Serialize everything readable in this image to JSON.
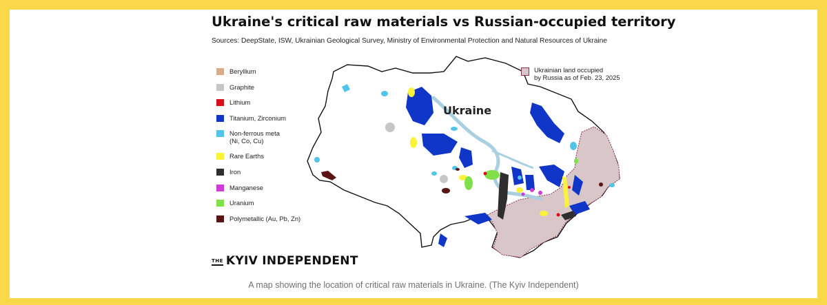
{
  "figure": {
    "title": "Ukraine's critical raw materials vs Russian-occupied territory",
    "sources": "Sources: DeepState, ISW, Ukrainian Geological Survey, Ministry of Environmental Protection and Natural Resources of Ukraine",
    "map_label": "Ukraine",
    "brand_the": "THE",
    "brand_name": "KYIV INDEPENDENT",
    "caption": "A map showing the location of critical raw materials in Ukraine. (The Kyiv Independent)"
  },
  "legend": {
    "items": [
      {
        "label": "Beryllium",
        "color": "#d9ab86"
      },
      {
        "label": "Graphite",
        "color": "#c6c6c6"
      },
      {
        "label": "Lithium",
        "color": "#d80f1b"
      },
      {
        "label": "Titanium, Zirconium",
        "color": "#1036c8"
      },
      {
        "label": "Non-ferrous meta\n(Ni, Co, Cu)",
        "color": "#52c4e8"
      },
      {
        "label": "Rare Earths",
        "color": "#fbf23a"
      },
      {
        "label": "Iron",
        "color": "#2e2e2e"
      },
      {
        "label": "Manganese",
        "color": "#cf3ad9"
      },
      {
        "label": "Uranium",
        "color": "#7fe04a"
      },
      {
        "label": "Polymetallic (Au, Pb, Zn)",
        "color": "#5a1414"
      }
    ],
    "occupied": {
      "label": "Ukrainian land occupied\nby Russia as of Feb. 23, 2025",
      "fill": "#d9c6c9",
      "border": "#8b2d4b"
    }
  }
}
